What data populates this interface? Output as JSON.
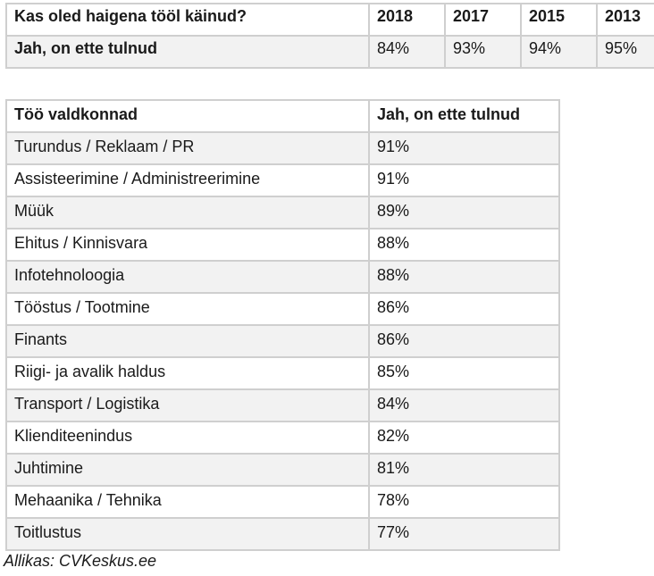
{
  "top_table": {
    "question": "Kas oled haigena tööl käinud?",
    "years": [
      "2018",
      "2017",
      "2015",
      "2013"
    ],
    "row_label": "Jah, on ette tulnud",
    "values": [
      "84%",
      "93%",
      "94%",
      "95%"
    ]
  },
  "sector_table": {
    "header_sector": "Töö valdkonnad",
    "header_value": "Jah, on ette tulnud",
    "rows": [
      {
        "sector": "Turundus / Reklaam / PR",
        "value": "91%"
      },
      {
        "sector": "Assisteerimine / Administreerimine",
        "value": "91%"
      },
      {
        "sector": "Müük",
        "value": "89%"
      },
      {
        "sector": "Ehitus / Kinnisvara",
        "value": "88%"
      },
      {
        "sector": "Infotehnoloogia",
        "value": "88%"
      },
      {
        "sector": "Tööstus / Tootmine",
        "value": "86%"
      },
      {
        "sector": "Finants",
        "value": "86%"
      },
      {
        "sector": "Riigi- ja avalik haldus",
        "value": "85%"
      },
      {
        "sector": "Transport / Logistika",
        "value": "84%"
      },
      {
        "sector": "Klienditeenindus",
        "value": "82%"
      },
      {
        "sector": "Juhtimine",
        "value": "81%"
      },
      {
        "sector": "Mehaanika / Tehnika",
        "value": "78%"
      },
      {
        "sector": "Toitlustus",
        "value": "77%"
      }
    ]
  },
  "source": "Allikas: CVKeskus.ee"
}
